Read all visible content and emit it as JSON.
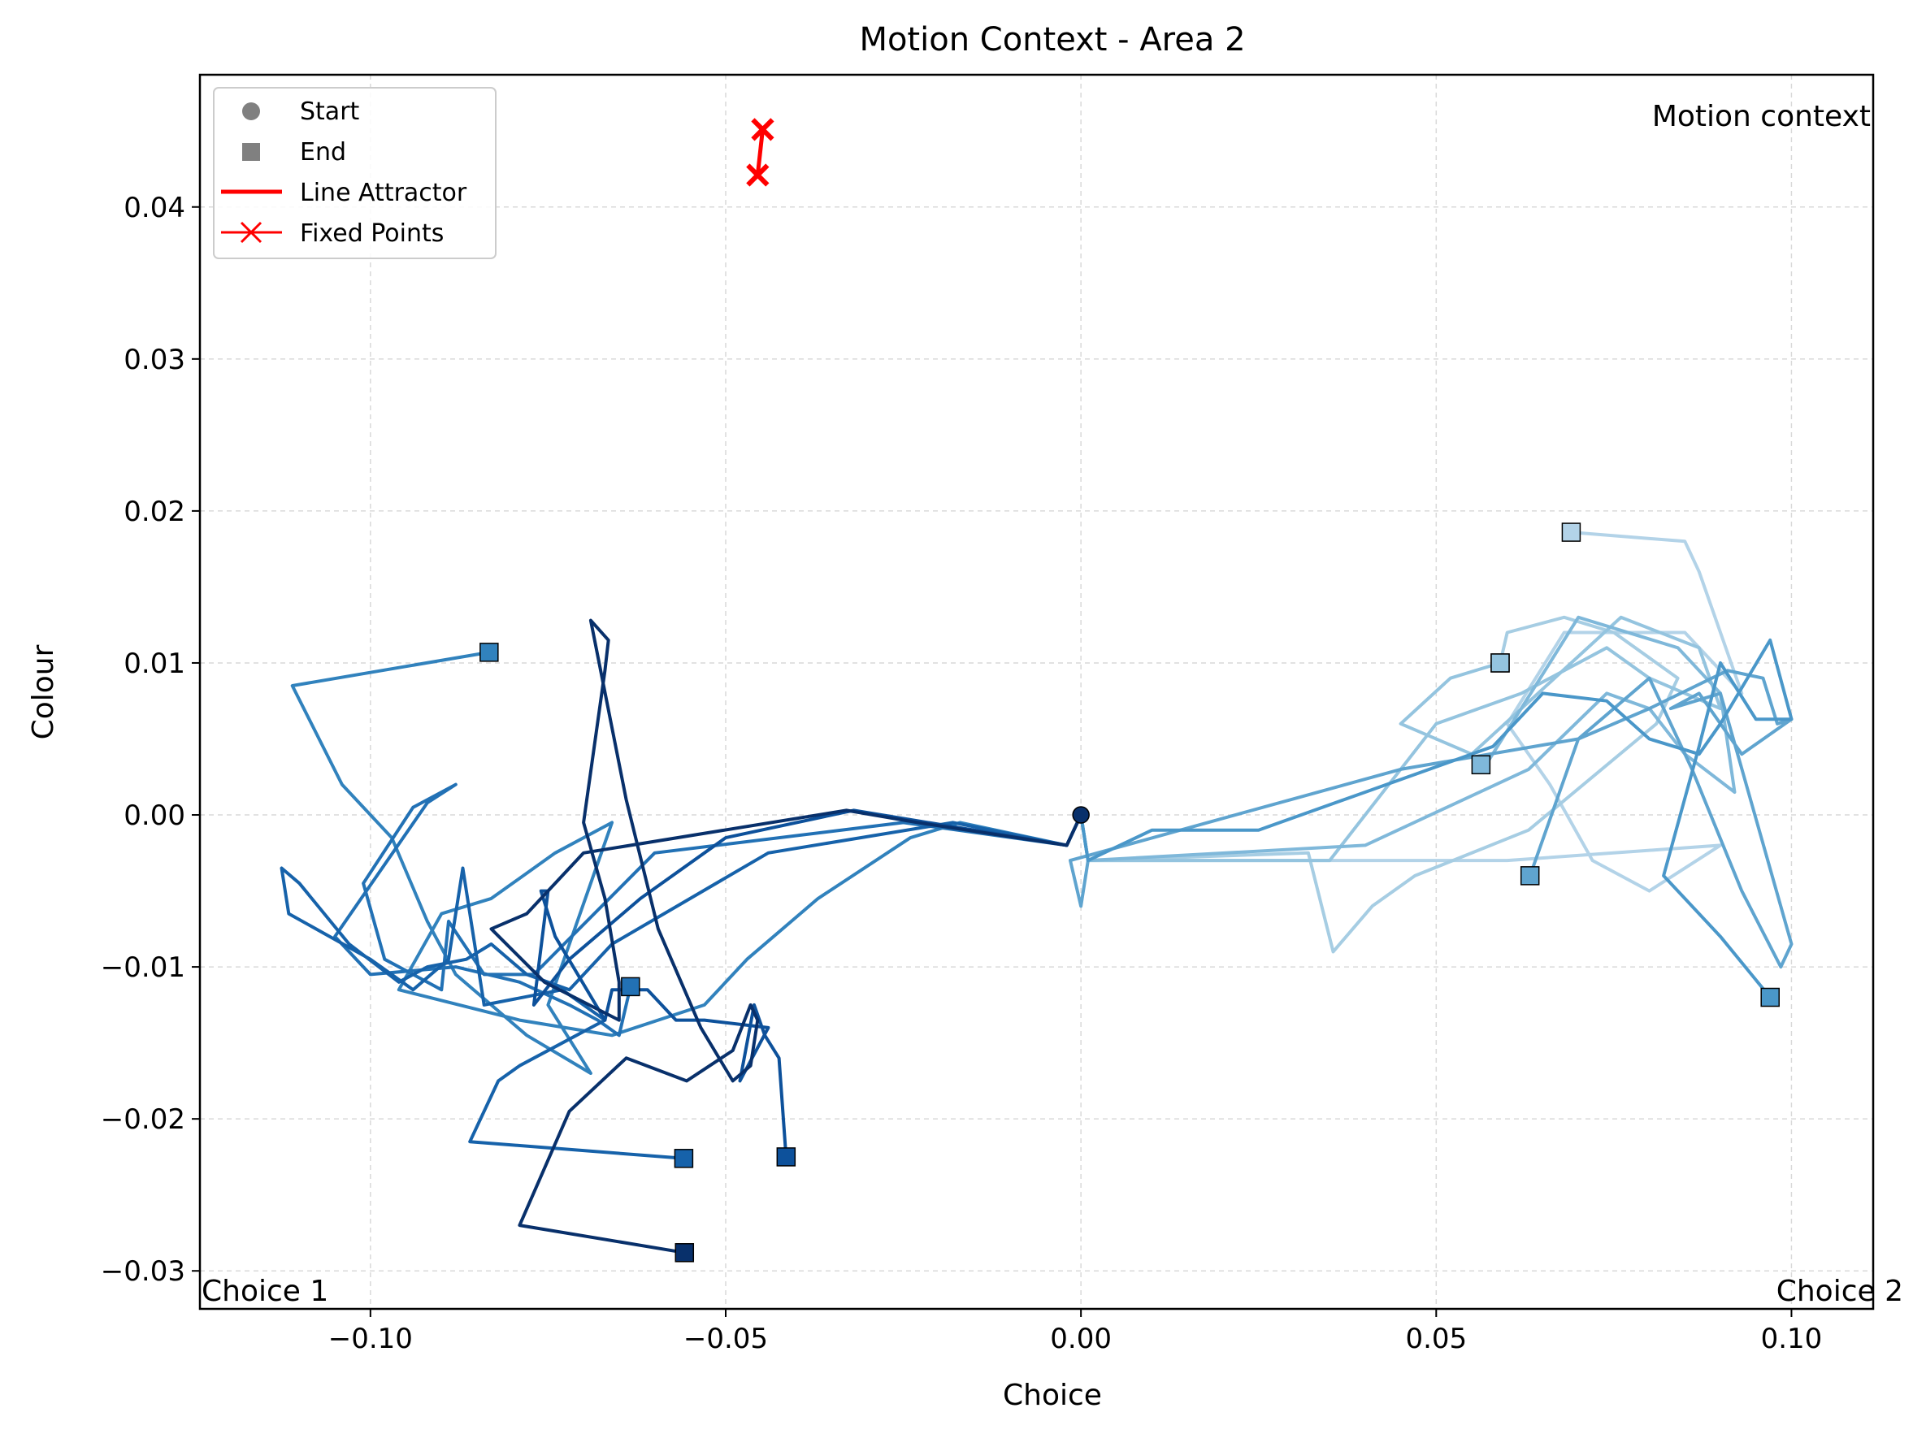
{
  "chart_data": {
    "type": "line",
    "title": "Motion Context - Area 2",
    "xlabel": "Choice",
    "ylabel": "Colour",
    "xlim": [
      -0.124,
      0.1115
    ],
    "ylim": [
      -0.0325,
      0.0487
    ],
    "xticks": [
      -0.1,
      -0.05,
      0.0,
      0.05,
      0.1
    ],
    "xtick_labels": [
      "−0.10",
      "−0.05",
      "0.00",
      "0.05",
      "0.10"
    ],
    "yticks": [
      -0.03,
      -0.02,
      -0.01,
      0.0,
      0.01,
      0.02,
      0.03,
      0.04
    ],
    "ytick_labels": [
      "−0.03",
      "−0.02",
      "−0.01",
      "0.00",
      "0.01",
      "0.02",
      "0.03",
      "0.04"
    ],
    "grid": true,
    "legend_position": "top-left",
    "legend": [
      {
        "label": "Start",
        "marker": "circle",
        "color": "#808080"
      },
      {
        "label": "End",
        "marker": "square",
        "color": "#808080"
      },
      {
        "label": "Line Attractor",
        "marker": "line",
        "color": "#ff0000"
      },
      {
        "label": "Fixed Points",
        "marker": "x-line",
        "color": "#ff0000"
      }
    ],
    "annotations": {
      "top_right": "Motion context",
      "bottom_left": "Choice 1",
      "bottom_right": "Choice 2"
    },
    "start_point": [
      0.0,
      0.0
    ],
    "line_attractor": {
      "color": "#ff0000",
      "points": [
        [
          -0.0455,
          0.0421
        ],
        [
          -0.0448,
          0.0451
        ]
      ]
    },
    "series": [
      {
        "color": "#b3d3e8",
        "points": [
          [
            0.0,
            0.0
          ],
          [
            0.001,
            -0.003
          ],
          [
            0.03,
            -0.003
          ],
          [
            0.06,
            -0.003
          ],
          [
            0.09,
            -0.002
          ],
          [
            0.08,
            -0.005
          ],
          [
            0.072,
            -0.003
          ],
          [
            0.066,
            0.002
          ],
          [
            0.06,
            0.006
          ],
          [
            0.064,
            0.009
          ],
          [
            0.068,
            0.012
          ],
          [
            0.085,
            0.012
          ],
          [
            0.093,
            0.008
          ],
          [
            0.087,
            0.016
          ],
          [
            0.085,
            0.018
          ],
          [
            0.069,
            0.0186
          ]
        ]
      },
      {
        "color": "#a6cde3",
        "points": [
          [
            0.0,
            0.0
          ],
          [
            0.001,
            -0.003
          ],
          [
            0.032,
            -0.0025
          ],
          [
            0.0355,
            -0.009
          ],
          [
            0.041,
            -0.006
          ],
          [
            0.047,
            -0.004
          ],
          [
            0.063,
            -0.001
          ],
          [
            0.081,
            0.006
          ],
          [
            0.084,
            0.009
          ],
          [
            0.075,
            0.012
          ],
          [
            0.068,
            0.013
          ],
          [
            0.06,
            0.012
          ],
          [
            0.059,
            0.01
          ]
        ]
      },
      {
        "color": "#94c4df",
        "points": [
          [
            0.0,
            0.0
          ],
          [
            0.001,
            -0.003
          ],
          [
            0.035,
            -0.003
          ],
          [
            0.05,
            0.006
          ],
          [
            0.062,
            0.008
          ],
          [
            0.074,
            0.011
          ],
          [
            0.08,
            0.009
          ],
          [
            0.09,
            0.007
          ],
          [
            0.087,
            0.011
          ],
          [
            0.076,
            0.013
          ],
          [
            0.055,
            0.004
          ],
          [
            0.045,
            0.006
          ],
          [
            0.052,
            0.009
          ],
          [
            0.059,
            0.01
          ]
        ]
      },
      {
        "color": "#7fb8da",
        "points": [
          [
            0.0,
            0.0
          ],
          [
            0.001,
            -0.003
          ],
          [
            0.04,
            -0.002
          ],
          [
            0.063,
            0.003
          ],
          [
            0.074,
            0.008
          ],
          [
            0.08,
            0.007
          ],
          [
            0.085,
            0.004
          ],
          [
            0.092,
            0.0015
          ],
          [
            0.09,
            0.008
          ],
          [
            0.084,
            0.011
          ],
          [
            0.07,
            0.013
          ],
          [
            0.057,
            0.0033
          ],
          [
            0.0563,
            0.0033
          ]
        ]
      },
      {
        "color": "#5fa4cf",
        "points": [
          [
            0.0,
            0.0
          ],
          [
            0.001,
            -0.003
          ],
          [
            0.0,
            -0.006
          ],
          [
            -0.0015,
            -0.003
          ],
          [
            0.045,
            0.003
          ],
          [
            0.07,
            0.005
          ],
          [
            0.08,
            0.007
          ],
          [
            0.091,
            0.0095
          ],
          [
            0.096,
            0.009
          ],
          [
            0.098,
            0.006
          ],
          [
            0.1,
            0.0063
          ],
          [
            0.093,
            0.004
          ],
          [
            0.087,
            0.008
          ],
          [
            0.083,
            0.007
          ],
          [
            0.09,
            0.008
          ],
          [
            0.1,
            -0.0085
          ],
          [
            0.0985,
            -0.01
          ],
          [
            0.093,
            -0.005
          ],
          [
            0.086,
            0.003
          ],
          [
            0.08,
            0.009
          ],
          [
            0.07,
            0.005
          ],
          [
            0.0632,
            -0.004
          ]
        ]
      },
      {
        "color": "#4a97c9",
        "points": [
          [
            0.0,
            0.0
          ],
          [
            0.001,
            -0.003
          ],
          [
            0.01,
            -0.001
          ],
          [
            0.025,
            -0.001
          ],
          [
            0.04,
            0.0015
          ],
          [
            0.058,
            0.0045
          ],
          [
            0.065,
            0.008
          ],
          [
            0.074,
            0.0075
          ],
          [
            0.08,
            0.005
          ],
          [
            0.087,
            0.004
          ],
          [
            0.09,
            0.006
          ],
          [
            0.097,
            0.0115
          ],
          [
            0.1,
            0.0063
          ],
          [
            0.095,
            0.0063
          ],
          [
            0.09,
            0.01
          ],
          [
            0.087,
            0.0045
          ],
          [
            0.082,
            -0.004
          ],
          [
            0.09,
            -0.008
          ],
          [
            0.097,
            -0.012
          ]
        ]
      },
      {
        "color": "#3182bd",
        "points": [
          [
            0.0,
            0.0
          ],
          [
            -0.002,
            -0.002
          ],
          [
            -0.017,
            -0.0005
          ],
          [
            -0.024,
            -0.0015
          ],
          [
            -0.037,
            -0.0055
          ],
          [
            -0.047,
            -0.0095
          ],
          [
            -0.053,
            -0.0125
          ],
          [
            -0.066,
            -0.0145
          ],
          [
            -0.079,
            -0.0135
          ],
          [
            -0.096,
            -0.0115
          ],
          [
            -0.09,
            -0.0065
          ],
          [
            -0.083,
            -0.0055
          ],
          [
            -0.074,
            -0.0025
          ],
          [
            -0.066,
            -0.0005
          ],
          [
            -0.075,
            -0.0125
          ],
          [
            -0.069,
            -0.017
          ],
          [
            -0.078,
            -0.0145
          ],
          [
            -0.088,
            -0.0105
          ],
          [
            -0.092,
            -0.007
          ],
          [
            -0.097,
            -0.0015
          ],
          [
            -0.104,
            0.002
          ],
          [
            -0.111,
            0.0085
          ],
          [
            -0.0833,
            0.0107
          ]
        ]
      },
      {
        "color": "#2271b5",
        "points": [
          [
            0.0,
            0.0
          ],
          [
            -0.002,
            -0.002
          ],
          [
            -0.025,
            -0.0005
          ],
          [
            -0.06,
            -0.0025
          ],
          [
            -0.077,
            -0.0105
          ],
          [
            -0.084,
            -0.0105
          ],
          [
            -0.089,
            -0.007
          ],
          [
            -0.09,
            -0.0115
          ],
          [
            -0.094,
            -0.0105
          ],
          [
            -0.098,
            -0.0095
          ],
          [
            -0.101,
            -0.0045
          ],
          [
            -0.094,
            0.0005
          ],
          [
            -0.088,
            0.002
          ],
          [
            -0.092,
            0.0008
          ],
          [
            -0.105,
            -0.008
          ],
          [
            -0.1,
            -0.0105
          ],
          [
            -0.088,
            -0.01
          ],
          [
            -0.079,
            -0.011
          ],
          [
            -0.072,
            -0.0125
          ],
          [
            -0.068,
            -0.0135
          ],
          [
            -0.065,
            -0.0145
          ],
          [
            -0.0634,
            -0.0113
          ]
        ]
      },
      {
        "color": "#1662aa",
        "points": [
          [
            0.0,
            0.0
          ],
          [
            -0.002,
            -0.002
          ],
          [
            -0.018,
            -0.0005
          ],
          [
            -0.044,
            -0.0025
          ],
          [
            -0.066,
            -0.0085
          ],
          [
            -0.072,
            -0.0115
          ],
          [
            -0.078,
            -0.0105
          ],
          [
            -0.083,
            -0.0085
          ],
          [
            -0.0865,
            -0.0095
          ],
          [
            -0.092,
            -0.01
          ],
          [
            -0.096,
            -0.011
          ],
          [
            -0.103,
            -0.0085
          ],
          [
            -0.11,
            -0.0045
          ],
          [
            -0.1125,
            -0.0035
          ],
          [
            -0.1115,
            -0.0065
          ],
          [
            -0.1,
            -0.0095
          ],
          [
            -0.094,
            -0.0115
          ],
          [
            -0.089,
            -0.0095
          ],
          [
            -0.087,
            -0.0035
          ],
          [
            -0.084,
            -0.0125
          ],
          [
            -0.073,
            -0.0115
          ],
          [
            -0.067,
            -0.0135
          ],
          [
            -0.071,
            -0.0145
          ],
          [
            -0.079,
            -0.0165
          ],
          [
            -0.082,
            -0.0175
          ],
          [
            -0.086,
            -0.0215
          ],
          [
            -0.0559,
            -0.0226
          ]
        ]
      },
      {
        "color": "#0d519b",
        "points": [
          [
            0.0,
            0.0
          ],
          [
            -0.002,
            -0.002
          ],
          [
            -0.032,
            0.0003
          ],
          [
            -0.05,
            -0.0015
          ],
          [
            -0.062,
            -0.0055
          ],
          [
            -0.072,
            -0.0095
          ],
          [
            -0.077,
            -0.0125
          ],
          [
            -0.075,
            -0.005
          ],
          [
            -0.076,
            -0.005
          ],
          [
            -0.074,
            -0.008
          ],
          [
            -0.067,
            -0.0135
          ],
          [
            -0.066,
            -0.0115
          ],
          [
            -0.061,
            -0.0115
          ],
          [
            -0.057,
            -0.0135
          ],
          [
            -0.053,
            -0.0135
          ],
          [
            -0.044,
            -0.014
          ],
          [
            -0.048,
            -0.0175
          ],
          [
            -0.046,
            -0.0125
          ],
          [
            -0.0445,
            -0.0145
          ],
          [
            -0.0425,
            -0.016
          ],
          [
            -0.0415,
            -0.0225
          ]
        ]
      },
      {
        "color": "#08306b",
        "points": [
          [
            0.0,
            0.0
          ],
          [
            -0.002,
            -0.002
          ],
          [
            -0.023,
            -0.0005
          ],
          [
            -0.033,
            0.0003
          ],
          [
            -0.07,
            -0.0025
          ],
          [
            -0.078,
            -0.0065
          ],
          [
            -0.083,
            -0.0075
          ],
          [
            -0.0755,
            -0.011
          ],
          [
            -0.065,
            -0.0135
          ],
          [
            -0.065,
            -0.011
          ],
          [
            -0.067,
            -0.0055
          ],
          [
            -0.07,
            -0.0005
          ],
          [
            -0.067,
            0.0095
          ],
          [
            -0.0665,
            0.0115
          ],
          [
            -0.069,
            0.0128
          ],
          [
            -0.064,
            0.001
          ],
          [
            -0.0595,
            -0.0075
          ],
          [
            -0.0535,
            -0.014
          ],
          [
            -0.049,
            -0.0175
          ],
          [
            -0.0465,
            -0.0165
          ],
          [
            -0.0455,
            -0.0135
          ],
          [
            -0.0465,
            -0.0125
          ],
          [
            -0.049,
            -0.0155
          ],
          [
            -0.0555,
            -0.0175
          ],
          [
            -0.064,
            -0.016
          ],
          [
            -0.072,
            -0.0195
          ],
          [
            -0.079,
            -0.027
          ],
          [
            -0.0558,
            -0.0288
          ]
        ]
      }
    ]
  }
}
